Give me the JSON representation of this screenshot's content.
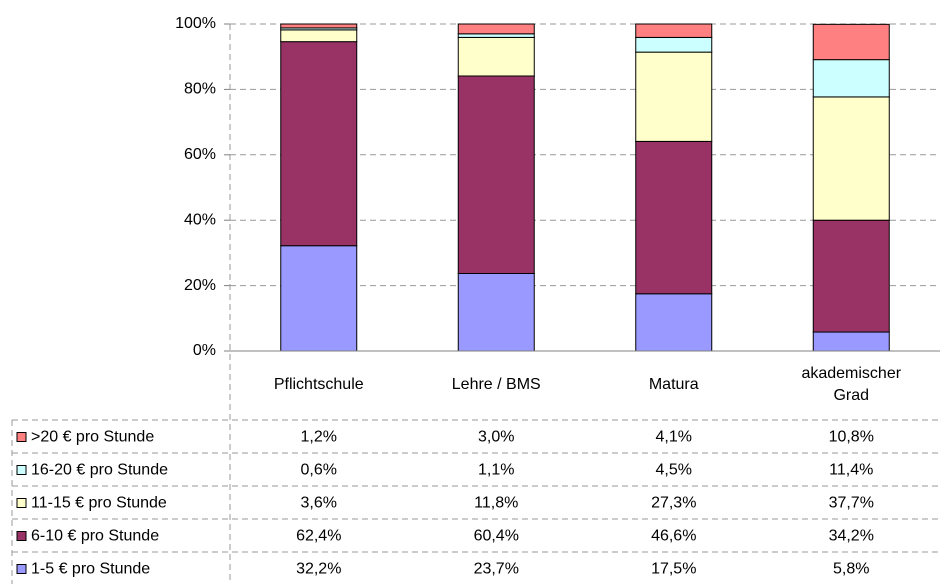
{
  "chart_data": {
    "type": "bar",
    "stacked": true,
    "categories": [
      "Pflichtschule",
      "Lehre / BMS",
      "Matura",
      "akademischer Grad"
    ],
    "series": [
      {
        "name": "1-5 € pro Stunde",
        "color": "#9999ff",
        "values": [
          32.2,
          23.7,
          17.5,
          5.8
        ],
        "value_labels": [
          "32,2%",
          "23,7%",
          "17,5%",
          "5,8%"
        ]
      },
      {
        "name": "6-10 € pro Stunde",
        "color": "#993366",
        "values": [
          62.4,
          60.4,
          46.6,
          34.2
        ],
        "value_labels": [
          "62,4%",
          "60,4%",
          "46,6%",
          "34,2%"
        ]
      },
      {
        "name": "11-15 € pro Stunde",
        "color": "#ffffcc",
        "values": [
          3.6,
          11.8,
          27.3,
          37.7
        ],
        "value_labels": [
          "3,6%",
          "11,8%",
          "27,3%",
          "37,7%"
        ]
      },
      {
        "name": "16-20 € pro Stunde",
        "color": "#ccffff",
        "values": [
          0.6,
          1.1,
          4.5,
          11.4
        ],
        "value_labels": [
          "0,6%",
          "1,1%",
          "4,5%",
          "11,4%"
        ]
      },
      {
        "name": ">20 € pro Stunde",
        "color": "#ff8080",
        "values": [
          1.2,
          3.0,
          4.1,
          10.8
        ],
        "value_labels": [
          "1,2%",
          "3,0%",
          "4,1%",
          "10,8%"
        ]
      }
    ],
    "ylim": [
      0,
      100
    ],
    "yticks": [
      {
        "value": 0,
        "label": "0%"
      },
      {
        "value": 20,
        "label": "20%"
      },
      {
        "value": 40,
        "label": "40%"
      },
      {
        "value": 60,
        "label": "60%"
      },
      {
        "value": 80,
        "label": "80%"
      },
      {
        "value": 100,
        "label": "100%"
      }
    ],
    "grid": true
  }
}
